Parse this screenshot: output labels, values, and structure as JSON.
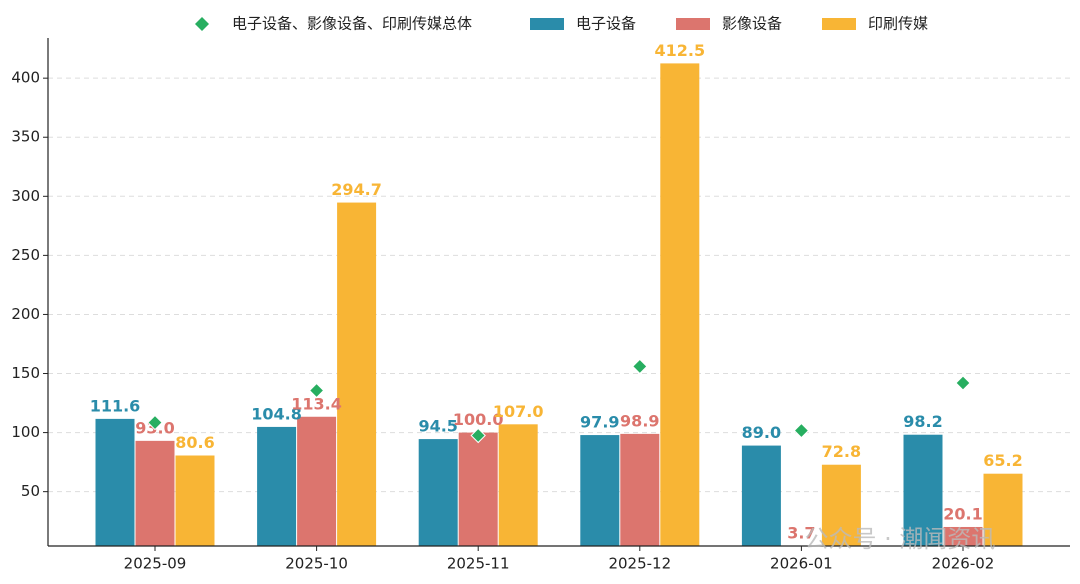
{
  "chart_data": {
    "type": "bar",
    "categories": [
      "2025-09",
      "2025-10",
      "2025-11",
      "2025-12",
      "2026-01",
      "2026-02"
    ],
    "series": [
      {
        "name": "电子设备",
        "color": "#2a8caa",
        "values": [
          111.6,
          104.8,
          94.5,
          97.9,
          89.0,
          98.2
        ],
        "value_labels": [
          "111.6",
          "104.8",
          "94.5",
          "97.9",
          "89.0",
          "98.2"
        ]
      },
      {
        "name": "影像设备",
        "color": "#dc756e",
        "values": [
          93.0,
          113.4,
          100.0,
          98.9,
          3.7,
          20.1
        ],
        "value_labels": [
          "93.0",
          "113.4",
          "100.0",
          "98.9",
          "3.7",
          "20.1"
        ]
      },
      {
        "name": "印刷传媒",
        "color": "#f8b535",
        "values": [
          80.6,
          294.7,
          107.0,
          412.5,
          72.8,
          65.2
        ],
        "value_labels": [
          "80.6",
          "294.7",
          "107.0",
          "412.5",
          "72.8",
          "65.2"
        ]
      }
    ],
    "total": {
      "name": "电子设备、影像设备、印刷传媒总体",
      "color": "#27ae60",
      "values": [
        108.5,
        135.6,
        97.5,
        156,
        101.7,
        142
      ]
    },
    "ylim": [
      4,
      434
    ],
    "yticks": [
      50,
      100,
      150,
      200,
      250,
      300,
      350,
      400
    ],
    "grid": true,
    "watermark": "公众号 · 潮闻资讯"
  }
}
